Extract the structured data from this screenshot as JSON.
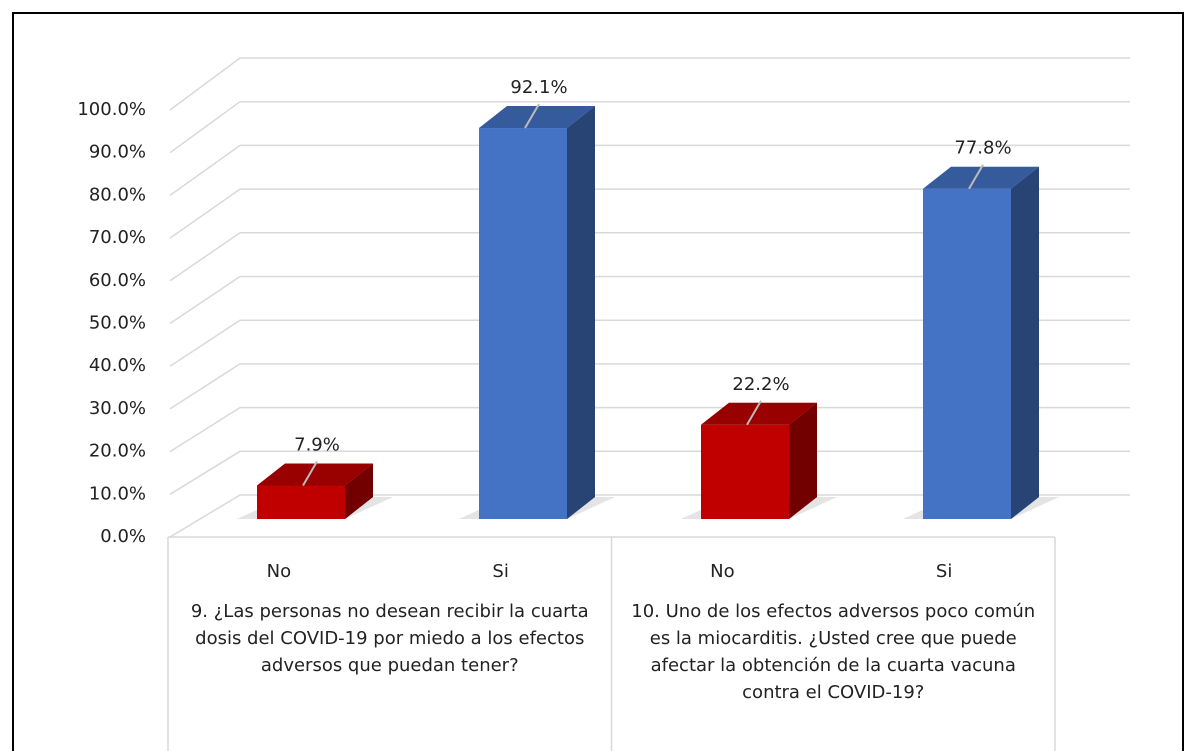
{
  "chart_data": {
    "type": "bar",
    "categories": [
      "No",
      "Si",
      "No",
      "Si"
    ],
    "groups": [
      "9. ¿Las personas no desean recibir la cuarta dosis del COVID-19 por miedo a los efectos adversos que puedan tener?",
      "10. Uno de los efectos adversos poco común es la miocarditis. ¿Usted cree que puede afectar la obtención de la cuarta vacuna contra el COVID-19?"
    ],
    "values": [
      7.9,
      92.1,
      22.2,
      77.8
    ],
    "value_labels": [
      "7.9%",
      "92.1%",
      "22.2%",
      "77.8%"
    ],
    "colors": [
      "#c00000",
      "#4472c4",
      "#c00000",
      "#4472c4"
    ],
    "ylim": [
      0,
      100
    ],
    "yticks": [
      {
        "value": 0,
        "label": "0.0%"
      },
      {
        "value": 10,
        "label": "10.0%"
      },
      {
        "value": 20,
        "label": "20.0%"
      },
      {
        "value": 30,
        "label": "30.0%"
      },
      {
        "value": 40,
        "label": "40.0%"
      },
      {
        "value": 50,
        "label": "50.0%"
      },
      {
        "value": 60,
        "label": "60.0%"
      },
      {
        "value": 70,
        "label": "70.0%"
      },
      {
        "value": 80,
        "label": "80.0%"
      },
      {
        "value": 90,
        "label": "90.0%"
      },
      {
        "value": 100,
        "label": "100.0%"
      }
    ],
    "grid": true
  }
}
